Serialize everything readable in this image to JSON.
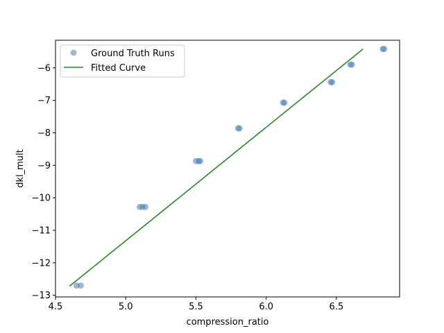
{
  "chart_data": {
    "type": "scatter",
    "xlabel": "compression_ratio",
    "ylabel": "dkl_mult",
    "xlim": [
      4.5,
      6.95
    ],
    "ylim": [
      -13.05,
      -5.15
    ],
    "xticks": [
      4.5,
      5.0,
      5.5,
      6.0,
      6.5
    ],
    "yticks": [
      -13,
      -12,
      -11,
      -10,
      -9,
      -8,
      -7,
      -6
    ],
    "xtick_labels": [
      "4.5",
      "5.0",
      "5.5",
      "6.0",
      "6.5"
    ],
    "ytick_labels": [
      "−13",
      "−12",
      "−11",
      "−10",
      "−9",
      "−8",
      "−7",
      "−6"
    ],
    "grid": false,
    "legend": {
      "placement": "top-left",
      "entries": [
        "Ground Truth Runs",
        "Fitted Curve"
      ]
    },
    "series": [
      {
        "name": "Ground Truth Runs",
        "kind": "scatter",
        "color": "#4a7fb6",
        "points": [
          {
            "x": 4.65,
            "y": -12.7
          },
          {
            "x": 4.68,
            "y": -12.7
          },
          {
            "x": 5.1,
            "y": -10.28
          },
          {
            "x": 5.12,
            "y": -10.28
          },
          {
            "x": 5.14,
            "y": -10.28
          },
          {
            "x": 5.5,
            "y": -8.87
          },
          {
            "x": 5.52,
            "y": -8.87
          },
          {
            "x": 5.53,
            "y": -8.87
          },
          {
            "x": 5.8,
            "y": -7.86
          },
          {
            "x": 5.81,
            "y": -7.86
          },
          {
            "x": 6.12,
            "y": -7.07
          },
          {
            "x": 6.13,
            "y": -7.07
          },
          {
            "x": 6.46,
            "y": -6.44
          },
          {
            "x": 6.47,
            "y": -6.44
          },
          {
            "x": 6.6,
            "y": -5.9
          },
          {
            "x": 6.61,
            "y": -5.9
          },
          {
            "x": 6.83,
            "y": -5.42
          },
          {
            "x": 6.84,
            "y": -5.42
          }
        ]
      },
      {
        "name": "Fitted Curve",
        "kind": "line",
        "color": "#228b22",
        "points": [
          {
            "x": 4.6,
            "y": -12.72
          },
          {
            "x": 6.69,
            "y": -5.42
          }
        ]
      }
    ]
  }
}
